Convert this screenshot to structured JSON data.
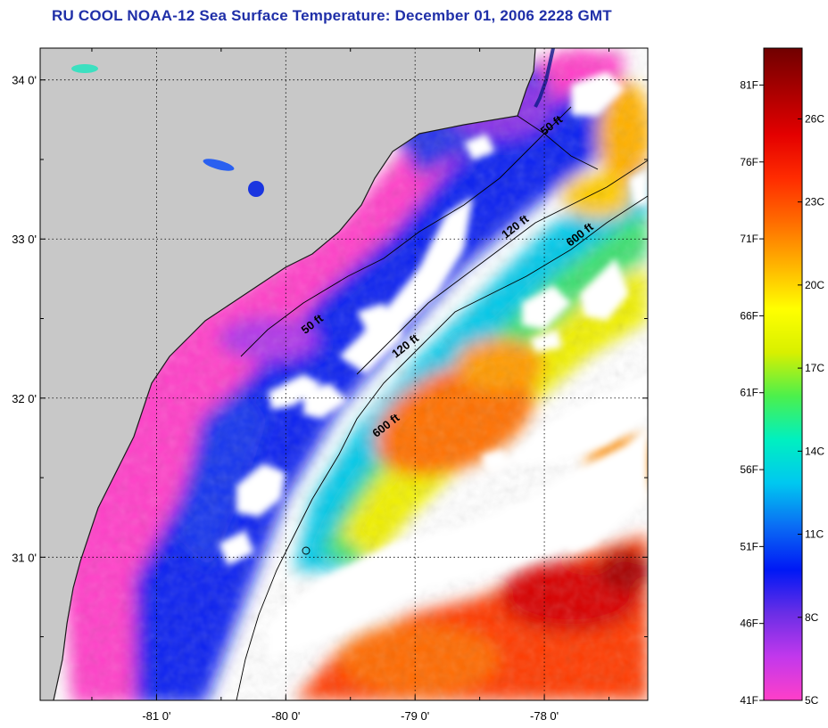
{
  "title": "RU COOL  NOAA-12  Sea Surface Temperature:  December 01, 2006 2228 GMT",
  "map": {
    "lon_range": [
      -81.9,
      -77.2
    ],
    "lat_range": [
      30.1,
      34.2
    ],
    "lon_ticks": [
      {
        "value": -81,
        "label": "-81 0'"
      },
      {
        "value": -80,
        "label": "-80 0'"
      },
      {
        "value": -79,
        "label": "-79 0'"
      },
      {
        "value": -78,
        "label": "-78 0'"
      }
    ],
    "lat_ticks": [
      {
        "value": 34,
        "label": "34 0'"
      },
      {
        "value": 33,
        "label": "33 0'"
      },
      {
        "value": 32,
        "label": "32 0'"
      },
      {
        "value": 31,
        "label": "31 0'"
      }
    ],
    "contour_labels": [
      {
        "text": "50 ft",
        "lon": -78.0,
        "lat": 33.65
      },
      {
        "text": "120 ft",
        "lon": -78.3,
        "lat": 33.0
      },
      {
        "text": "600 ft",
        "lon": -77.8,
        "lat": 32.95
      },
      {
        "text": "50 ft",
        "lon": -79.85,
        "lat": 32.4
      },
      {
        "text": "120 ft",
        "lon": -79.15,
        "lat": 32.25
      },
      {
        "text": "600 ft",
        "lon": -79.3,
        "lat": 31.75
      }
    ],
    "colors": {
      "land": "#c8c8c8",
      "cloud": "#ffffff"
    }
  },
  "colorbar": {
    "fahrenheit_labels": [
      "81F",
      "76F",
      "71F",
      "66F",
      "61F",
      "56F",
      "51F",
      "46F",
      "41F"
    ],
    "celsius_labels": [
      "26C",
      "23C",
      "20C",
      "17C",
      "14C",
      "11C",
      "8C",
      "5C"
    ],
    "stops": [
      "#ff3fc8",
      "#c238ec",
      "#6a2ee6",
      "#0018f5",
      "#0a6cf4",
      "#00c8f0",
      "#00f0c0",
      "#4cf04c",
      "#d8f000",
      "#ffff00",
      "#ffb400",
      "#ff6c00",
      "#ff2c00",
      "#e40000",
      "#aa0000",
      "#700000"
    ]
  }
}
